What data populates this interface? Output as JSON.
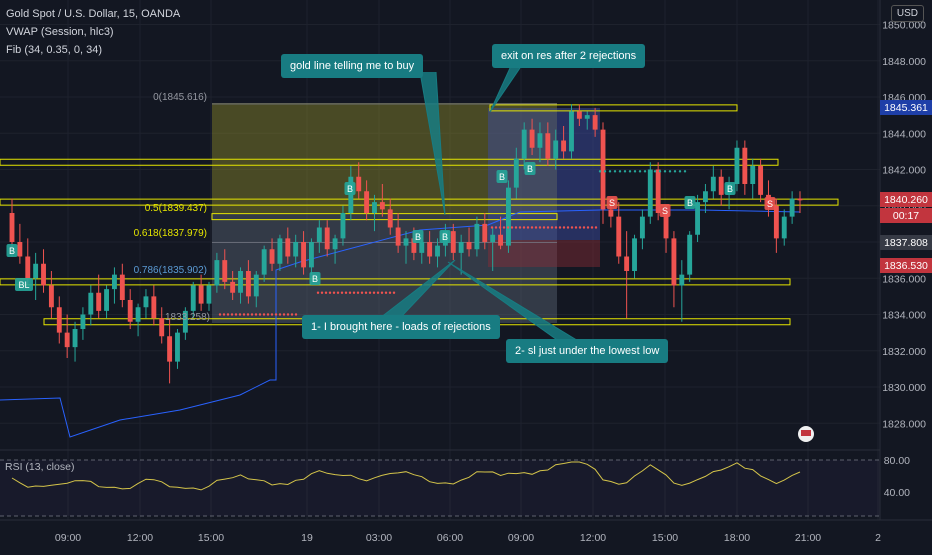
{
  "header": {
    "symbol_line": "Gold Spot / U.S. Dollar, 15, OANDA",
    "indicator_vwap": "VWAP (Session, hlc3)",
    "indicator_fib": "Fib (34, 0.35, 0, 34)",
    "currency_button": "USD"
  },
  "price_axis": {
    "ticks": [
      "1850.000",
      "1848.000",
      "1846.000",
      "1844.000",
      "1842.000",
      "1840.000",
      "1838.000",
      "1836.000",
      "1834.000",
      "1832.000",
      "1830.000",
      "1828.000"
    ]
  },
  "time_axis": {
    "ticks": [
      "09:00",
      "12:00",
      "15:00",
      "19",
      "03:00",
      "06:00",
      "09:00",
      "12:00",
      "15:00",
      "18:00",
      "21:00",
      "2"
    ]
  },
  "price_labels": [
    {
      "value": "1845.361",
      "color": "#1e3fa8"
    },
    {
      "value": "1840.260",
      "color": "#c2353e"
    },
    {
      "value": "00:17",
      "color": "#c2353e"
    },
    {
      "value": "1837.808",
      "color": "#363a45"
    },
    {
      "value": "1836.530",
      "color": "#c2353e"
    }
  ],
  "fib_labels": {
    "level_0": "0(1845.616)",
    "level_05": "0.5(1839.437)",
    "level_0618": "0.618(1837.979)",
    "level_0786": "0.786(1835.902)",
    "level_1": "1833.258)"
  },
  "signal_labels": {
    "b": "B",
    "s": "S",
    "bl": "BL"
  },
  "annotations": {
    "gold_line": "gold line telling me to buy",
    "exit": "exit on res after 2 rejections",
    "bought": "1- I brought here - loads of rejections",
    "sl": "2- sl just under the lowest low"
  },
  "rsi": {
    "label": "RSI (13, close)",
    "ticks": [
      "80.00",
      "40.00"
    ]
  },
  "colors": {
    "background": "#131722",
    "bull": "#26a69a",
    "bear": "#ef5350",
    "gold": "#e6e600",
    "callout": "#187c82",
    "vwap": "#2962ff"
  },
  "chart_data": {
    "type": "candlestick",
    "title": "Gold Spot / U.S. Dollar, 15, OANDA",
    "ylim": [
      1826.8,
      1850.8
    ],
    "xlabel": "",
    "ylabel": "",
    "candles": [
      [
        1839.6,
        1840.4,
        1837.2,
        1838.0
      ],
      [
        1838.0,
        1839.0,
        1836.8,
        1837.2
      ],
      [
        1837.2,
        1838.2,
        1835.6,
        1836.0
      ],
      [
        1836.0,
        1837.4,
        1834.8,
        1836.8
      ],
      [
        1836.8,
        1837.6,
        1835.2,
        1835.6
      ],
      [
        1835.6,
        1836.4,
        1833.8,
        1834.4
      ],
      [
        1834.4,
        1835.0,
        1832.4,
        1833.0
      ],
      [
        1833.0,
        1834.0,
        1831.6,
        1832.2
      ],
      [
        1832.2,
        1833.6,
        1831.4,
        1833.2
      ],
      [
        1833.2,
        1834.4,
        1832.6,
        1834.0
      ],
      [
        1834.0,
        1835.6,
        1833.4,
        1835.2
      ],
      [
        1835.2,
        1836.2,
        1833.8,
        1834.2
      ],
      [
        1834.2,
        1835.6,
        1833.8,
        1835.4
      ],
      [
        1835.4,
        1836.6,
        1834.6,
        1836.2
      ],
      [
        1836.2,
        1836.8,
        1834.4,
        1834.8
      ],
      [
        1834.8,
        1835.4,
        1833.2,
        1833.6
      ],
      [
        1833.6,
        1834.6,
        1832.8,
        1834.4
      ],
      [
        1834.4,
        1835.4,
        1833.8,
        1835.0
      ],
      [
        1835.0,
        1835.6,
        1833.4,
        1833.8
      ],
      [
        1833.8,
        1834.4,
        1832.4,
        1832.8
      ],
      [
        1832.8,
        1833.8,
        1830.2,
        1831.4
      ],
      [
        1831.4,
        1833.2,
        1831.0,
        1833.0
      ],
      [
        1833.0,
        1834.4,
        1832.6,
        1834.2
      ],
      [
        1834.2,
        1835.8,
        1833.8,
        1835.6
      ],
      [
        1835.6,
        1836.2,
        1834.2,
        1834.6
      ],
      [
        1834.6,
        1835.8,
        1834.2,
        1835.6
      ],
      [
        1835.6,
        1837.4,
        1835.2,
        1837.0
      ],
      [
        1837.0,
        1837.6,
        1835.4,
        1835.8
      ],
      [
        1835.8,
        1836.4,
        1834.8,
        1835.2
      ],
      [
        1835.2,
        1836.6,
        1834.6,
        1836.4
      ],
      [
        1836.4,
        1837.0,
        1834.6,
        1835.0
      ],
      [
        1835.0,
        1836.4,
        1834.4,
        1836.2
      ],
      [
        1836.2,
        1837.8,
        1835.8,
        1837.6
      ],
      [
        1837.6,
        1838.2,
        1836.4,
        1836.8
      ],
      [
        1836.8,
        1838.4,
        1836.4,
        1838.2
      ],
      [
        1838.2,
        1838.8,
        1836.8,
        1837.2
      ],
      [
        1837.2,
        1838.4,
        1836.6,
        1838.0
      ],
      [
        1838.0,
        1838.6,
        1836.2,
        1836.6
      ],
      [
        1836.6,
        1838.2,
        1836.2,
        1838.0
      ],
      [
        1838.0,
        1839.2,
        1837.4,
        1838.8
      ],
      [
        1838.8,
        1839.2,
        1837.2,
        1837.6
      ],
      [
        1837.6,
        1838.4,
        1836.8,
        1838.2
      ],
      [
        1838.2,
        1840.0,
        1837.8,
        1839.6
      ],
      [
        1839.6,
        1842.2,
        1839.2,
        1841.6
      ],
      [
        1841.6,
        1842.4,
        1840.4,
        1840.8
      ],
      [
        1840.8,
        1841.4,
        1839.2,
        1839.6
      ],
      [
        1839.6,
        1840.6,
        1838.6,
        1840.2
      ],
      [
        1840.2,
        1841.2,
        1839.4,
        1839.8
      ],
      [
        1839.8,
        1840.4,
        1838.4,
        1838.8
      ],
      [
        1838.8,
        1839.6,
        1837.4,
        1837.8
      ],
      [
        1837.8,
        1838.6,
        1836.8,
        1838.2
      ],
      [
        1838.2,
        1838.8,
        1837.0,
        1837.4
      ],
      [
        1837.4,
        1838.4,
        1836.8,
        1838.0
      ],
      [
        1838.0,
        1838.6,
        1836.8,
        1837.2
      ],
      [
        1837.2,
        1838.2,
        1836.6,
        1837.8
      ],
      [
        1837.8,
        1839.0,
        1837.2,
        1838.6
      ],
      [
        1838.6,
        1839.0,
        1837.0,
        1837.4
      ],
      [
        1837.4,
        1838.4,
        1836.2,
        1838.0
      ],
      [
        1838.0,
        1838.8,
        1837.2,
        1837.6
      ],
      [
        1837.6,
        1839.4,
        1837.2,
        1839.0
      ],
      [
        1839.0,
        1839.6,
        1837.6,
        1838.0
      ],
      [
        1838.0,
        1838.8,
        1836.4,
        1838.4
      ],
      [
        1838.4,
        1839.4,
        1837.6,
        1837.8
      ],
      [
        1837.8,
        1841.4,
        1837.4,
        1841.0
      ],
      [
        1841.0,
        1843.2,
        1840.4,
        1842.6
      ],
      [
        1842.6,
        1844.6,
        1842.0,
        1844.2
      ],
      [
        1844.2,
        1844.8,
        1842.8,
        1843.2
      ],
      [
        1843.2,
        1844.6,
        1842.4,
        1844.0
      ],
      [
        1844.0,
        1844.6,
        1842.2,
        1842.6
      ],
      [
        1842.6,
        1844.2,
        1842.0,
        1843.6
      ],
      [
        1843.6,
        1844.4,
        1842.6,
        1843.0
      ],
      [
        1843.0,
        1845.6,
        1842.6,
        1845.2
      ],
      [
        1845.2,
        1845.6,
        1844.4,
        1844.8
      ],
      [
        1844.8,
        1845.2,
        1844.2,
        1845.0
      ],
      [
        1845.0,
        1845.4,
        1843.8,
        1844.2
      ],
      [
        1844.2,
        1844.6,
        1839.0,
        1839.8
      ],
      [
        1839.8,
        1840.4,
        1838.8,
        1839.4
      ],
      [
        1839.4,
        1840.2,
        1836.8,
        1837.2
      ],
      [
        1837.2,
        1838.6,
        1833.8,
        1836.4
      ],
      [
        1836.4,
        1838.4,
        1836.0,
        1838.2
      ],
      [
        1838.2,
        1839.8,
        1837.6,
        1839.4
      ],
      [
        1839.4,
        1842.4,
        1839.0,
        1842.0
      ],
      [
        1842.0,
        1842.4,
        1839.2,
        1839.6
      ],
      [
        1839.6,
        1840.0,
        1837.4,
        1838.2
      ],
      [
        1838.2,
        1838.6,
        1834.4,
        1835.6
      ],
      [
        1835.6,
        1837.0,
        1833.6,
        1836.2
      ],
      [
        1836.2,
        1838.6,
        1835.8,
        1838.4
      ],
      [
        1838.4,
        1840.6,
        1838.0,
        1840.2
      ],
      [
        1840.2,
        1841.2,
        1839.6,
        1840.8
      ],
      [
        1840.8,
        1842.2,
        1840.4,
        1841.6
      ],
      [
        1841.6,
        1842.0,
        1840.0,
        1840.6
      ],
      [
        1840.6,
        1841.6,
        1839.8,
        1841.2
      ],
      [
        1841.2,
        1843.6,
        1840.8,
        1843.2
      ],
      [
        1843.2,
        1843.6,
        1840.6,
        1841.2
      ],
      [
        1841.2,
        1842.6,
        1840.4,
        1842.2
      ],
      [
        1842.2,
        1842.6,
        1840.2,
        1840.6
      ],
      [
        1840.6,
        1841.4,
        1839.4,
        1840.0
      ],
      [
        1840.0,
        1840.4,
        1837.4,
        1838.2
      ],
      [
        1838.2,
        1839.8,
        1837.8,
        1839.4
      ],
      [
        1839.4,
        1840.8,
        1839.0,
        1840.4
      ],
      [
        1840.4,
        1840.8,
        1839.6,
        1840.3
      ]
    ]
  }
}
